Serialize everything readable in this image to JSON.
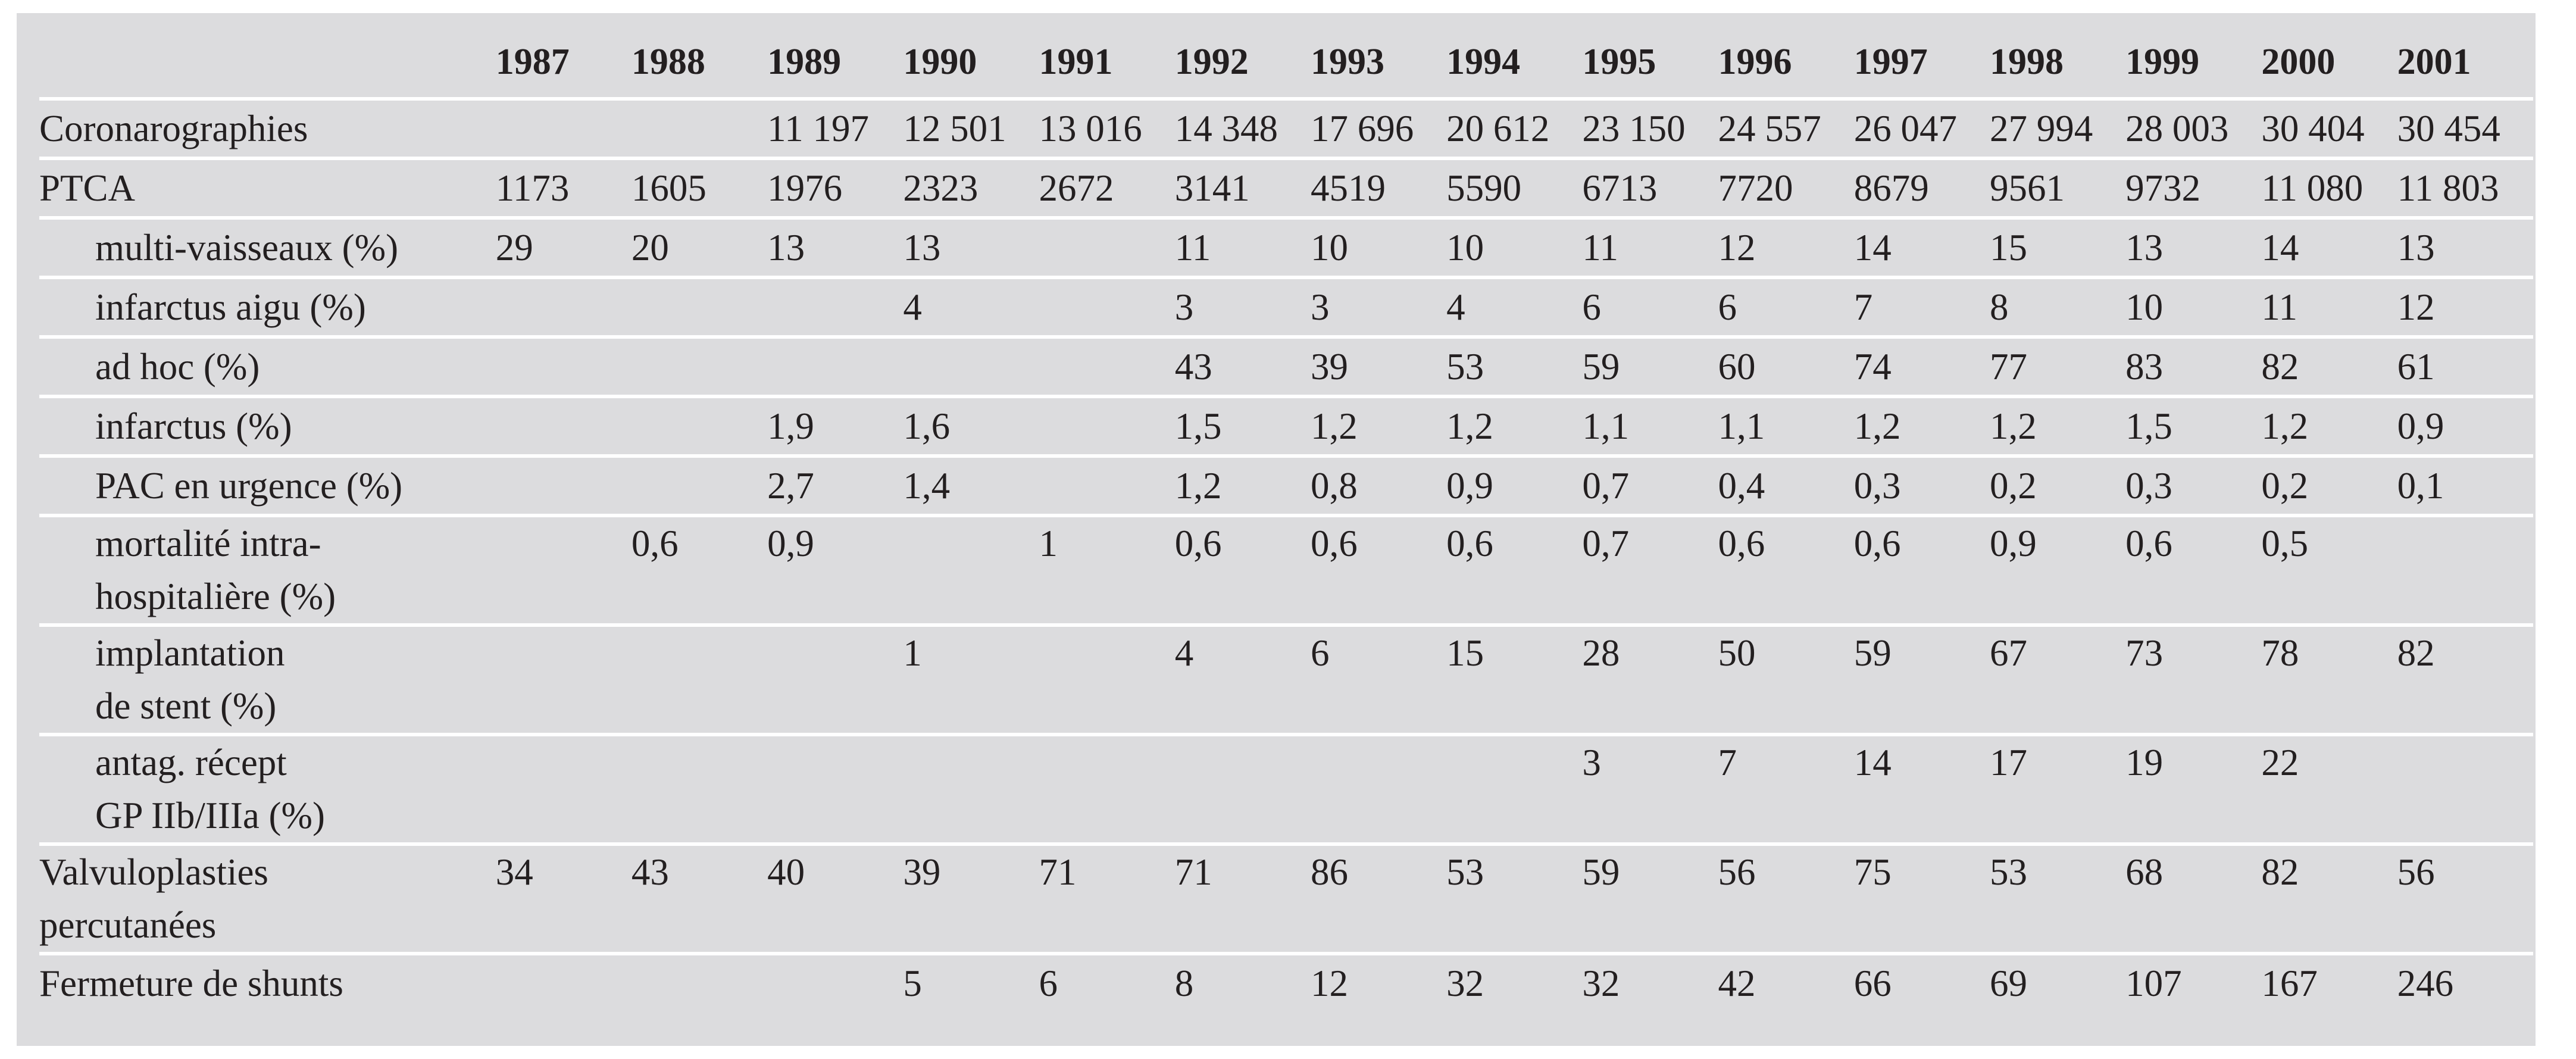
{
  "header": {
    "years": [
      "1987",
      "1988",
      "1989",
      "1990",
      "1991",
      "1992",
      "1993",
      "1994",
      "1995",
      "1996",
      "1997",
      "1998",
      "1999",
      "2000",
      "2001"
    ]
  },
  "rows": [
    {
      "label": [
        "Coronarographies"
      ],
      "indent": false,
      "values": [
        "",
        "",
        "11 197",
        "12 501",
        "13 016",
        "14 348",
        "17 696",
        "20 612",
        "23 150",
        "24 557",
        "26 047",
        "27 994",
        "28 003",
        "30 404",
        "30 454"
      ]
    },
    {
      "label": [
        "PTCA"
      ],
      "indent": false,
      "values": [
        "1173",
        "1605",
        "1976",
        "2323",
        "2672",
        "3141",
        "4519",
        "5590",
        "6713",
        "7720",
        "8679",
        "9561",
        "9732",
        "11 080",
        "11 803"
      ]
    },
    {
      "label": [
        "multi-vaisseaux (%)"
      ],
      "indent": true,
      "values": [
        "29",
        "20",
        "13",
        "13",
        "",
        "11",
        "10",
        "10",
        "11",
        "12",
        "14",
        "15",
        "13",
        "14",
        "13"
      ]
    },
    {
      "label": [
        "infarctus aigu (%)"
      ],
      "indent": true,
      "values": [
        "",
        "",
        "",
        "4",
        "",
        "3",
        "3",
        "4",
        "6",
        "6",
        "7",
        "8",
        "10",
        "11",
        "12"
      ]
    },
    {
      "label": [
        "ad hoc (%)"
      ],
      "indent": true,
      "values": [
        "",
        "",
        "",
        "",
        "",
        "43",
        "39",
        "53",
        "59",
        "60",
        "74",
        "77",
        "83",
        "82",
        "61"
      ]
    },
    {
      "label": [
        "infarctus (%)"
      ],
      "indent": true,
      "values": [
        "",
        "",
        "1,9",
        "1,6",
        "",
        "1,5",
        "1,2",
        "1,2",
        "1,1",
        "1,1",
        "1,2",
        "1,2",
        "1,5",
        "1,2",
        "0,9"
      ]
    },
    {
      "label": [
        "PAC en urgence (%)"
      ],
      "indent": true,
      "values": [
        "",
        "",
        "2,7",
        "1,4",
        "",
        "1,2",
        "0,8",
        "0,9",
        "0,7",
        "0,4",
        "0,3",
        "0,2",
        "0,3",
        "0,2",
        "0,1"
      ]
    },
    {
      "label": [
        "mortalité intra-",
        "hospitalière (%)"
      ],
      "indent": true,
      "values": [
        "",
        "0,6",
        "0,9",
        "",
        "1",
        "0,6",
        "0,6",
        "0,6",
        "0,7",
        "0,6",
        "0,6",
        "0,9",
        "0,6",
        "0,5",
        ""
      ]
    },
    {
      "label": [
        "implantation",
        "de stent (%)"
      ],
      "indent": true,
      "values": [
        "",
        "",
        "",
        "1",
        "",
        "4",
        "6",
        "15",
        "28",
        "50",
        "59",
        "67",
        "73",
        "78",
        "82"
      ]
    },
    {
      "label": [
        "antag. récept",
        "GP IIb/IIIa (%)"
      ],
      "indent": true,
      "values": [
        "",
        "",
        "",
        "",
        "",
        "",
        "",
        "",
        "3",
        "7",
        "14",
        "17",
        "19",
        "22",
        ""
      ]
    },
    {
      "label": [
        "Valvuloplasties",
        "percutanées"
      ],
      "indent": false,
      "values": [
        "34",
        "43",
        "40",
        "39",
        "71",
        "71",
        "86",
        "53",
        "59",
        "56",
        "75",
        "53",
        "68",
        "82",
        "56"
      ]
    },
    {
      "label": [
        "Fermeture de shunts"
      ],
      "indent": false,
      "values": [
        "",
        "",
        "",
        "5",
        "6",
        "8",
        "12",
        "32",
        "32",
        "42",
        "66",
        "69",
        "107",
        "167",
        "246"
      ]
    }
  ],
  "colors": {
    "panel_background": "#dcdcde",
    "row_divider": "#ffffff",
    "text": "#231f20"
  }
}
